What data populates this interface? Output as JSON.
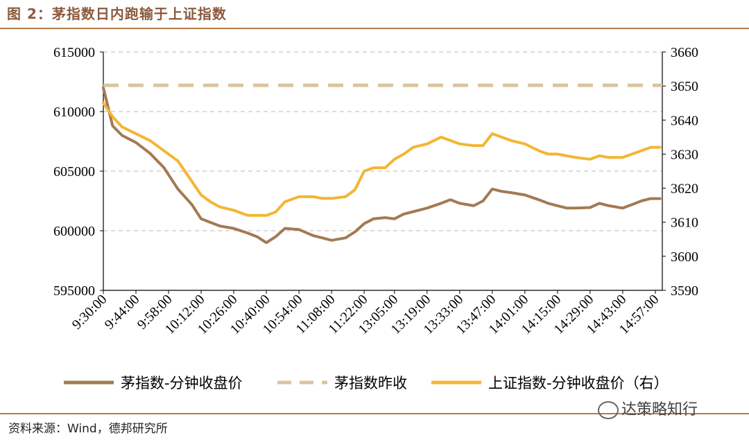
{
  "figure": {
    "title": "图 2：茅指数日内跑输于上证指数",
    "source": "资料来源：Wind，德邦研究所",
    "watermark": "达策略知行"
  },
  "chart_data": {
    "type": "line",
    "x_tick_labels": [
      "9:30:00",
      "9:44:00",
      "9:58:00",
      "10:12:00",
      "10:26:00",
      "10:40:00",
      "10:54:00",
      "11:08:00",
      "11:22:00",
      "13:05:00",
      "13:19:00",
      "13:33:00",
      "13:47:00",
      "14:01:00",
      "14:15:00",
      "14:29:00",
      "14:43:00",
      "14:57:00"
    ],
    "y_left": {
      "min": 595000,
      "max": 615000,
      "ticks": [
        615000,
        610000,
        605000,
        600000,
        595000
      ]
    },
    "y_right": {
      "min": 3590,
      "max": 3660,
      "ticks": [
        3660,
        3650,
        3640,
        3630,
        3620,
        3610,
        3600,
        3590
      ]
    },
    "grid": "horizontal dashed",
    "legend_position": "bottom",
    "series": [
      {
        "name": "茅指数-分钟收盘价",
        "axis": "left",
        "color": "#A27A54",
        "style": "solid",
        "x": [
          "9:30:00",
          "9:34:00",
          "9:38:00",
          "9:44:00",
          "9:50:00",
          "9:56:00",
          "10:02:00",
          "10:08:00",
          "10:12:00",
          "10:16:00",
          "10:20:00",
          "10:26:00",
          "10:32:00",
          "10:36:00",
          "10:40:00",
          "10:44:00",
          "10:48:00",
          "10:54:00",
          "11:00:00",
          "11:04:00",
          "11:08:00",
          "11:14:00",
          "11:18:00",
          "11:22:00",
          "11:26:00",
          "13:01:00",
          "13:05:00",
          "13:09:00",
          "13:13:00",
          "13:19:00",
          "13:25:00",
          "13:29:00",
          "13:33:00",
          "13:39:00",
          "13:43:00",
          "13:47:00",
          "13:51:00",
          "13:55:00",
          "14:01:00",
          "14:07:00",
          "14:11:00",
          "14:15:00",
          "14:19:00",
          "14:23:00",
          "14:29:00",
          "14:33:00",
          "14:37:00",
          "14:43:00",
          "14:47:00",
          "14:51:00",
          "14:55:00",
          "14:59:00"
        ],
        "values": [
          612000,
          608800,
          608000,
          607400,
          606500,
          605300,
          603500,
          602200,
          601000,
          600700,
          600400,
          600200,
          599800,
          599500,
          599000,
          599500,
          600200,
          600100,
          599600,
          599400,
          599200,
          599400,
          599900,
          600600,
          601000,
          601100,
          601000,
          601400,
          601600,
          601900,
          602300,
          602600,
          602300,
          602100,
          602500,
          603500,
          603300,
          603200,
          603000,
          602600,
          602300,
          602100,
          601900,
          601900,
          601950,
          602300,
          602100,
          601900,
          602200,
          602500,
          602700,
          602700
        ]
      },
      {
        "name": "茅指数昨收",
        "axis": "left",
        "color": "#D9C59E",
        "style": "dashed",
        "values": [
          612200
        ]
      },
      {
        "name": "上证指数-分钟收盘价（右）",
        "axis": "right",
        "color": "#F4B532",
        "style": "solid",
        "x": [
          "9:30:00",
          "9:34:00",
          "9:38:00",
          "9:44:00",
          "9:50:00",
          "9:56:00",
          "10:02:00",
          "10:08:00",
          "10:12:00",
          "10:16:00",
          "10:20:00",
          "10:26:00",
          "10:32:00",
          "10:36:00",
          "10:40:00",
          "10:44:00",
          "10:48:00",
          "10:54:00",
          "11:00:00",
          "11:04:00",
          "11:08:00",
          "11:14:00",
          "11:18:00",
          "11:22:00",
          "11:26:00",
          "13:01:00",
          "13:05:00",
          "13:09:00",
          "13:13:00",
          "13:19:00",
          "13:25:00",
          "13:29:00",
          "13:33:00",
          "13:39:00",
          "13:43:00",
          "13:47:00",
          "13:51:00",
          "13:55:00",
          "14:01:00",
          "14:07:00",
          "14:11:00",
          "14:15:00",
          "14:19:00",
          "14:23:00",
          "14:29:00",
          "14:33:00",
          "14:37:00",
          "14:43:00",
          "14:47:00",
          "14:51:00",
          "14:55:00",
          "14:59:00"
        ],
        "values": [
          3645,
          3641,
          3638,
          3636,
          3634,
          3631,
          3628,
          3622,
          3618,
          3616,
          3614.5,
          3613.5,
          3612,
          3612,
          3612,
          3613,
          3616,
          3617.5,
          3617.5,
          3617,
          3617,
          3617.5,
          3619.5,
          3625,
          3626,
          3626,
          3628.5,
          3630,
          3632,
          3633,
          3635,
          3634,
          3633,
          3632.5,
          3632.5,
          3636,
          3635,
          3634,
          3633,
          3631,
          3630,
          3630,
          3629.5,
          3629,
          3628.5,
          3629.5,
          3629,
          3629,
          3630,
          3631,
          3632,
          3632
        ]
      }
    ]
  }
}
